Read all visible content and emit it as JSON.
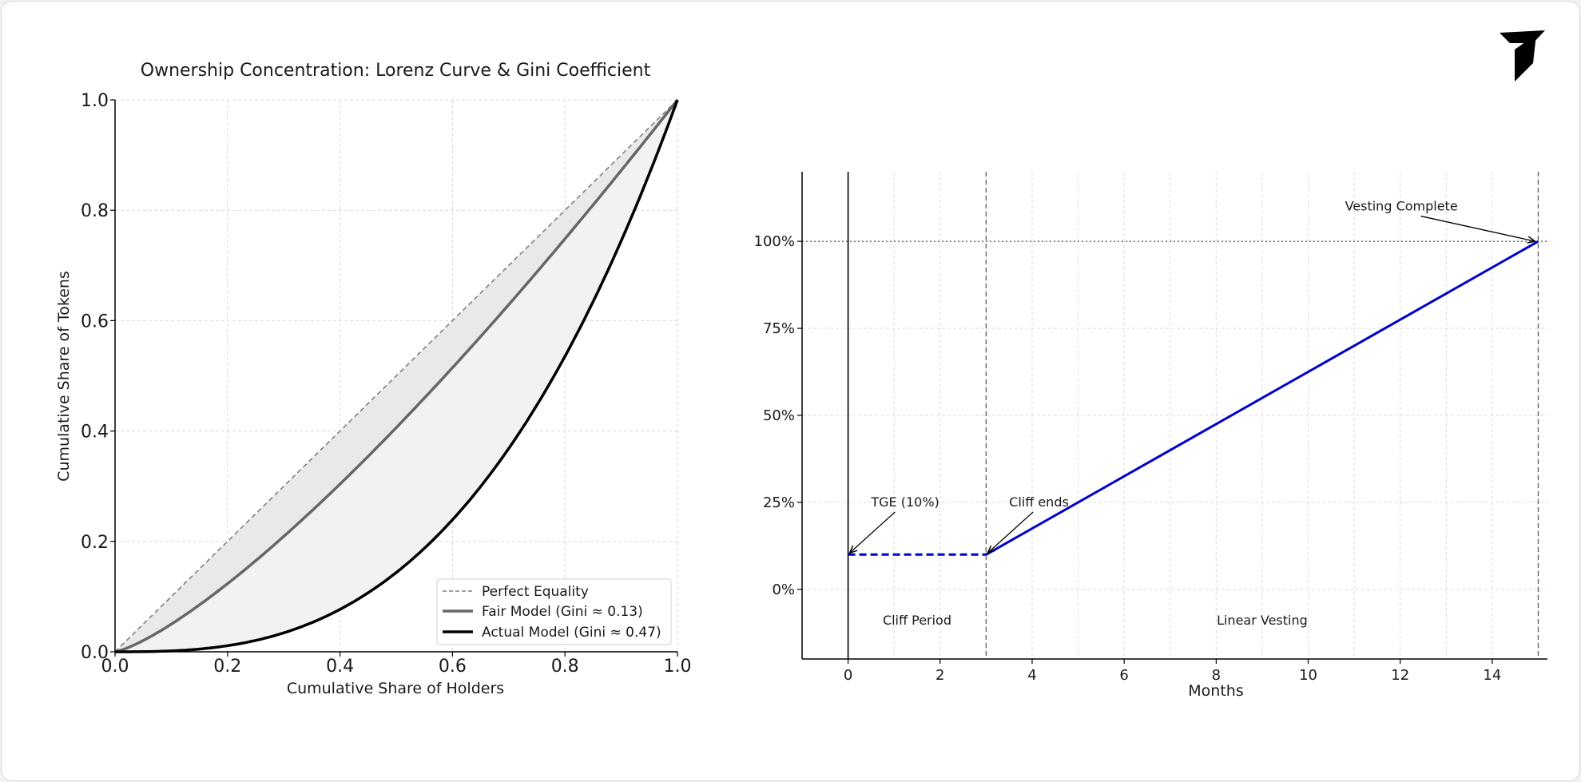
{
  "chart_data": [
    {
      "type": "line",
      "title": "Ownership Concentration: Lorenz Curve & Gini Coefficient",
      "xlabel": "Cumulative Share of Holders",
      "ylabel": "Cumulative Share of Tokens",
      "xlim": [
        0,
        1
      ],
      "ylim": [
        0,
        1
      ],
      "xticks": [
        0,
        0.2,
        0.4,
        0.6,
        0.8,
        1.0
      ],
      "yticks": [
        0,
        0.2,
        0.4,
        0.6,
        0.8,
        1.0
      ],
      "xtick_labels": [
        "0.0",
        "0.2",
        "0.4",
        "0.6",
        "0.8",
        "1.0"
      ],
      "ytick_labels": [
        "0.0",
        "0.2",
        "0.4",
        "0.6",
        "0.8",
        "1.0"
      ],
      "grid": true,
      "legend": "lower-right",
      "series": [
        {
          "name": "Perfect Equality",
          "style": "dashed",
          "color": "#808080",
          "formula": "y = x",
          "x": [
            0,
            1
          ],
          "y": [
            0,
            1
          ]
        },
        {
          "name": "Fair Model (Gini ≈ 0.13)",
          "style": "solid",
          "color": "#666666",
          "formula": "y = x^1.3",
          "x": [
            0,
            0.1,
            0.2,
            0.3,
            0.4,
            0.5,
            0.6,
            0.7,
            0.8,
            0.9,
            1.0
          ],
          "y": [
            0,
            0.05,
            0.123,
            0.209,
            0.304,
            0.406,
            0.515,
            0.629,
            0.748,
            0.872,
            1.0
          ]
        },
        {
          "name": "Actual Model (Gini ≈ 0.47)",
          "style": "solid",
          "color": "#000000",
          "formula": "y = x^2.8",
          "x": [
            0,
            0.1,
            0.2,
            0.3,
            0.4,
            0.5,
            0.6,
            0.7,
            0.8,
            0.9,
            1.0
          ],
          "y": [
            0,
            0.002,
            0.011,
            0.034,
            0.077,
            0.144,
            0.24,
            0.368,
            0.535,
            0.745,
            1.0
          ]
        }
      ],
      "shaded_regions": [
        {
          "between": [
            "Perfect Equality",
            "Fair Model (Gini ≈ 0.13)"
          ],
          "color": "#e9e9e9"
        },
        {
          "between": [
            "Fair Model (Gini ≈ 0.13)",
            "Actual Model (Gini ≈ 0.47)"
          ],
          "color": "#f2f2f2"
        }
      ]
    },
    {
      "type": "line",
      "title": "",
      "xlabel": "Months",
      "ylabel": "",
      "xlim": [
        -1,
        15.2
      ],
      "ylim": [
        -20,
        120
      ],
      "xticks": [
        0,
        2,
        4,
        6,
        8,
        10,
        12,
        14
      ],
      "xtick_labels": [
        "0",
        "2",
        "4",
        "6",
        "8",
        "10",
        "12",
        "14"
      ],
      "yticks": [
        0,
        25,
        50,
        75,
        100
      ],
      "ytick_labels": [
        "0%",
        "25%",
        "50%",
        "75%",
        "100%"
      ],
      "grid": true,
      "series": [
        {
          "style": "dashed",
          "color": "#0000cc",
          "x": [
            0,
            3
          ],
          "y": [
            10,
            10
          ]
        },
        {
          "style": "solid",
          "color": "#0000cc",
          "x": [
            3,
            15
          ],
          "y": [
            10,
            100
          ]
        }
      ],
      "reference_lines": [
        {
          "orientation": "vertical",
          "x": 0,
          "style": "solid",
          "color": "#000000"
        },
        {
          "orientation": "vertical",
          "x": 3,
          "style": "dashed",
          "color": "#666666"
        },
        {
          "orientation": "vertical",
          "x": 15,
          "style": "dashed",
          "color": "#666666"
        },
        {
          "orientation": "horizontal",
          "y": 100,
          "style": "dotted",
          "color": "#666666"
        }
      ],
      "annotations": [
        {
          "text": "TGE (10%)",
          "point": [
            0,
            10
          ],
          "text_at": [
            0.5,
            25
          ]
        },
        {
          "text": "Cliff ends",
          "point": [
            3,
            10
          ],
          "text_at": [
            3.5,
            25
          ]
        },
        {
          "text": "Vesting Complete",
          "point": [
            15,
            100
          ],
          "text_at": [
            10.8,
            110
          ]
        }
      ],
      "region_labels": [
        {
          "text": "Cliff Period",
          "at": [
            1.5,
            -9
          ]
        },
        {
          "text": "Linear Vesting",
          "at": [
            9,
            -9
          ]
        }
      ]
    }
  ],
  "logo": {
    "name": "brand-logo",
    "color": "#000000"
  }
}
